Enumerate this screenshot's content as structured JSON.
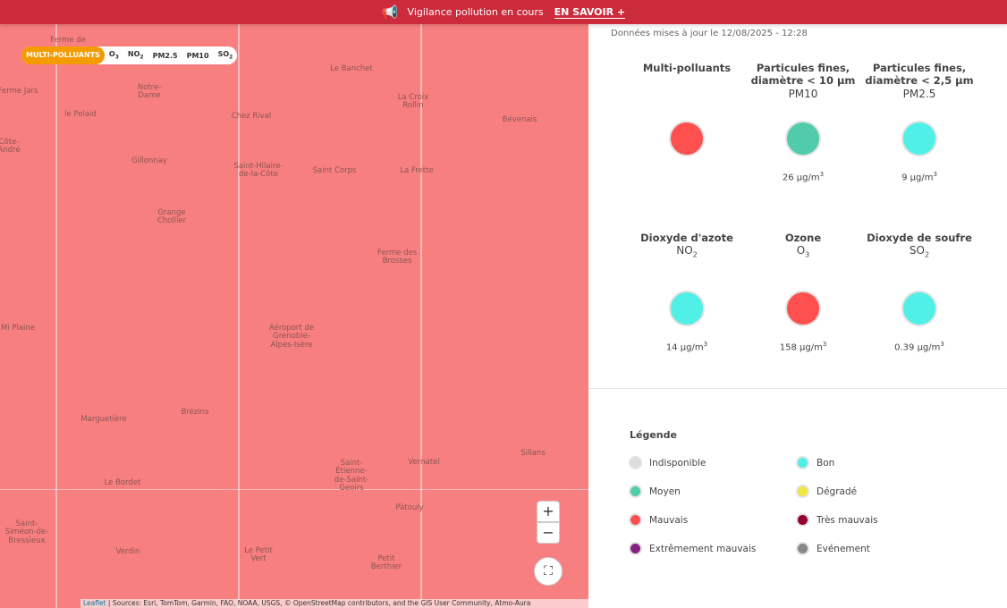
{
  "banner": {
    "text": "Vigilance pollution en cours",
    "link": "EN SAVOIR +",
    "icon": "megaphone-icon"
  },
  "selector": {
    "items": [
      "MULTI-POLLUANTS",
      "O",
      "NO",
      "PM2.5",
      "PM10",
      "SO"
    ],
    "subs": {
      "o3": "3",
      "no2": "2",
      "so2": "2"
    },
    "active": "MULTI-POLLUANTS"
  },
  "map": {
    "labels": [
      "Ferme de",
      "Le Banchet",
      "Ferme Jars",
      "Notre-Dame",
      "La Croix Rollin",
      "le Polaid",
      "Chez Rival",
      "Bévenais",
      "Côte-André",
      "Gillonnay",
      "Saint-Hilaire-de-la-Côte",
      "Saint Corps",
      "La Frette",
      "Grange Chollier",
      "Ferme des Brosses",
      "Mi Plaine",
      "Aéroport de Grenoble-Alpes-Isère",
      "Marguetière",
      "Brézins",
      "Saint-Étienne-de-Saint-Geoirs",
      "Vernatel",
      "Sillans",
      "Le Bordet",
      "Pâtouly",
      "Saint-Siméon-de-Bressieux",
      "Verdin",
      "Le Petit Vert",
      "Petit Berthier"
    ],
    "zoom_in": "+",
    "zoom_out": "−",
    "fullscreen": "⛶",
    "attribution": {
      "leaflet": "Leaflet",
      "sources": " | Sources: Esri, TomTom, Garmin, FAO, NOAA, USGS, © OpenStreetMap contributors, and the GIS User Community, Atmo-Aura"
    }
  },
  "panel": {
    "updated": "Données mises à jour le 12/08/2025 - 12:28",
    "pollutants": [
      {
        "name": "Multi-polluants",
        "symbol": "",
        "value": "",
        "unit": "",
        "color": "#ff5050"
      },
      {
        "name": "Particules fines, diamètre < 10 µm",
        "symbol": "PM10",
        "value": "26 µg/m",
        "unit": "3",
        "color": "#50ccaa"
      },
      {
        "name": "Particules fines, diamètre < 2,5 µm",
        "symbol": "PM2.5",
        "value": "9 µg/m",
        "unit": "3",
        "color": "#50f0e6"
      },
      {
        "name": "Dioxyde d'azote",
        "symbol": "NO",
        "sub": "2",
        "value": "14 µg/m",
        "unit": "3",
        "color": "#50f0e6"
      },
      {
        "name": "Ozone",
        "symbol": "O",
        "sub": "3",
        "value": "158 µg/m",
        "unit": "3",
        "color": "#ff5050"
      },
      {
        "name": "Dioxyde de soufre",
        "symbol": "SO",
        "sub": "2",
        "value": "0.39 µg/m",
        "unit": "3",
        "color": "#50f0e6"
      }
    ]
  },
  "legend": {
    "title": "Légende",
    "items": [
      {
        "label": "Indisponible",
        "color": "#dddddd"
      },
      {
        "label": "Bon",
        "color": "#50f0e6"
      },
      {
        "label": "Moyen",
        "color": "#50ccaa"
      },
      {
        "label": "Dégradé",
        "color": "#f0e641"
      },
      {
        "label": "Mauvais",
        "color": "#ff5050"
      },
      {
        "label": "Très mauvais",
        "color": "#960032"
      },
      {
        "label": "Extrêmement mauvais",
        "color": "#872181"
      },
      {
        "label": "Evénement",
        "color": "#888888"
      }
    ]
  }
}
